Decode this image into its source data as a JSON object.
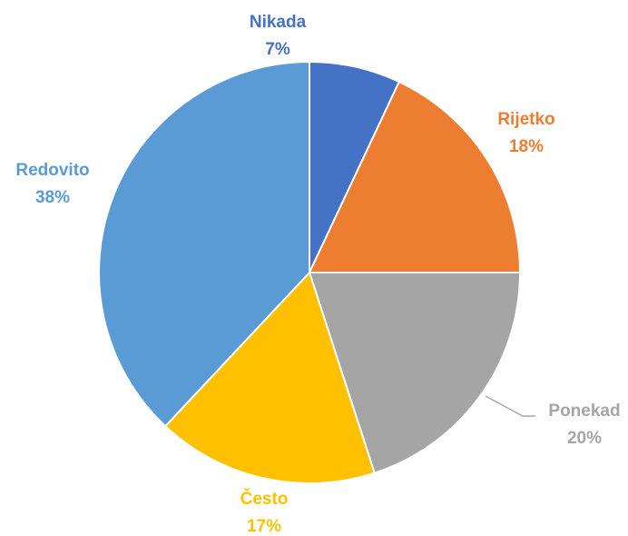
{
  "chart_data": {
    "type": "pie",
    "start_angle": "12 o'clock",
    "direction": "clockwise",
    "slices": [
      {
        "name": "Nikada",
        "value": 7,
        "label": "7%",
        "color": "#4472C4",
        "label_color": "#4472C4"
      },
      {
        "name": "Rijetko",
        "value": 18,
        "label": "18%",
        "color": "#ED7D31",
        "label_color": "#ED7D31"
      },
      {
        "name": "Ponekad",
        "value": 20,
        "label": "20%",
        "color": "#A5A5A5",
        "label_color": "#A5A5A5"
      },
      {
        "name": "Često",
        "value": 17,
        "label": "17%",
        "color": "#FFC000",
        "label_color": "#FFC000"
      },
      {
        "name": "Redovito",
        "value": 38,
        "label": "38%",
        "color": "#5B9BD5",
        "label_color": "#5B9BD5"
      }
    ]
  }
}
